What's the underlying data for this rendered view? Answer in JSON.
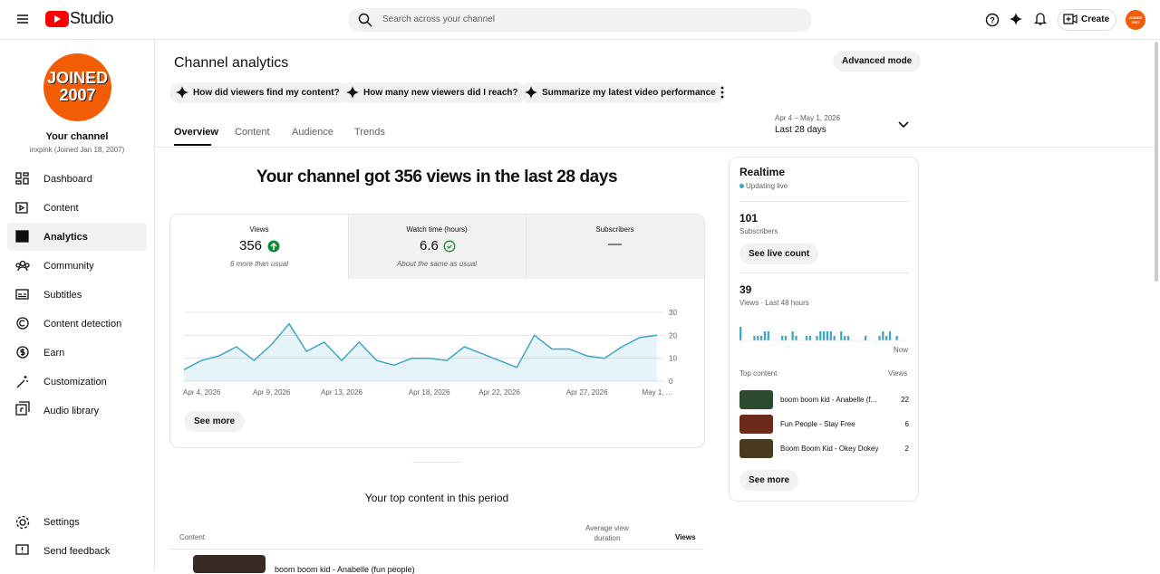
{
  "header": {
    "logo": "Studio",
    "search_placeholder": "Search across your channel",
    "create": "Create",
    "avatar": [
      "JOINED",
      "2007"
    ]
  },
  "sidebar": {
    "avatar": [
      "JOINED",
      "2007"
    ],
    "channel_name": "Your channel",
    "channel_handle": "inxpink (Joined Jan 18, 2007)",
    "nav": [
      "Dashboard",
      "Content",
      "Analytics",
      "Community",
      "Subtitles",
      "Content detection",
      "Earn",
      "Customization",
      "Audio library"
    ],
    "footer": [
      "Settings",
      "Send feedback"
    ]
  },
  "page": {
    "title": "Channel analytics",
    "advanced": "Advanced mode",
    "prompts": [
      "How did viewers find my content?",
      "How many new viewers did I reach?",
      "Summarize my latest video performance"
    ],
    "tabs": [
      "Overview",
      "Content",
      "Audience",
      "Trends"
    ],
    "date_range": "Apr 4 – May 1, 2026",
    "period": "Last 28 days"
  },
  "overview": {
    "headline": "Your channel got 356 views in the last 28 days",
    "metrics": [
      {
        "label": "Views",
        "value": 356,
        "note": "6 more than usual"
      },
      {
        "label": "Watch time (hours)",
        "value": 6.6,
        "note": "About the same as usual"
      },
      {
        "label": "Subscribers",
        "value": "—"
      }
    ],
    "see_more": "See more"
  },
  "chart_data": [
    {
      "type": "line",
      "x": [
        "Apr 4, 2026",
        null,
        null,
        null,
        null,
        "Apr 9, 2026",
        null,
        null,
        null,
        "Apr 13, 2026",
        null,
        null,
        null,
        null,
        "Apr 18, 2026",
        null,
        null,
        null,
        "Apr 22, 2026",
        null,
        null,
        null,
        null,
        "Apr 27, 2026",
        null,
        null,
        null,
        "May 1, ..."
      ],
      "values": [
        5,
        9,
        11,
        15,
        9,
        16,
        25,
        13,
        17,
        9,
        17,
        9,
        7,
        10,
        10,
        9,
        15,
        12,
        9,
        6,
        20,
        14,
        14,
        11,
        10,
        15,
        19,
        20
      ],
      "color": "#3ea6c7",
      "ylim": [
        0,
        30
      ],
      "yticks": [
        0,
        10,
        20,
        30
      ],
      "grid": true
    },
    {
      "type": "bar",
      "end_label": "Now",
      "values": [
        3,
        0,
        0,
        0,
        1,
        1,
        1,
        2,
        2,
        0,
        0,
        0,
        1,
        1,
        0,
        2,
        1,
        0,
        0,
        1,
        1,
        0,
        1,
        2,
        2,
        2,
        2,
        1,
        0,
        2,
        1,
        1,
        0,
        0,
        0,
        0,
        1,
        0,
        0,
        0,
        1,
        2,
        1,
        2,
        0,
        1,
        0,
        0
      ],
      "color": "#3ea6c7"
    }
  ],
  "realtime": {
    "title": "Realtime",
    "status": "Updating live",
    "subscribers": 101,
    "subscribers_label": "Subscribers",
    "live_count": "See live count",
    "views": 39,
    "views_label": "Views · Last 48 hours",
    "top_content": "Top content",
    "views_header": "Views",
    "items": [
      {
        "title": "boom boom kid - Anabelle (f...",
        "views": 22
      },
      {
        "title": "Fun People - Stay Free",
        "views": 6
      },
      {
        "title": "Boom Boom Kid - Okey Dokey",
        "views": 2
      }
    ],
    "see_more": "See more"
  },
  "top_content": {
    "title": "Your top content in this period",
    "columns": [
      "Content",
      "Average view",
      "duration",
      "Views"
    ],
    "rows": [
      "boom boom kid - Anabelle (fun people)"
    ]
  }
}
